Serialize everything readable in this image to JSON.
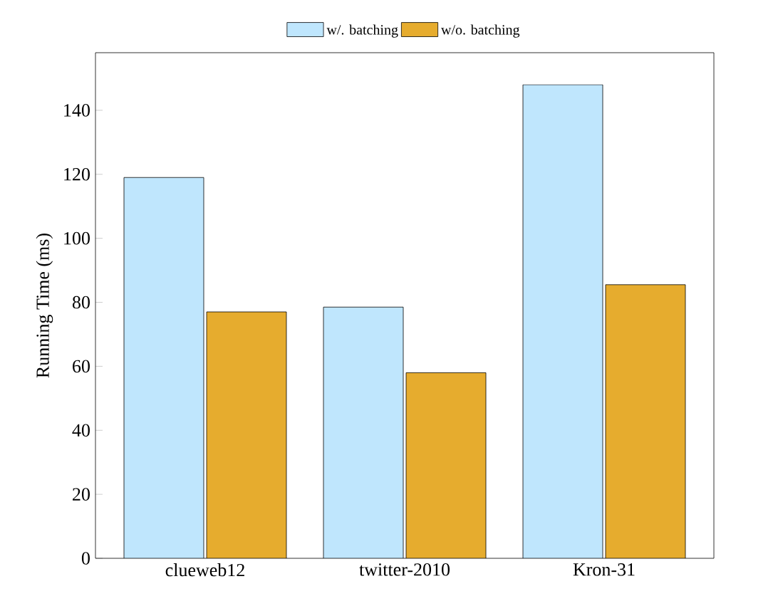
{
  "chart_data": {
    "type": "bar",
    "ylabel": "Running Time (ms)",
    "categories": [
      "clueweb12",
      "twitter-2010",
      "Kron-31"
    ],
    "series": [
      {
        "name": "w/. batching",
        "color": "#bfe6fd",
        "values": [
          119,
          78.5,
          148
        ]
      },
      {
        "name": "w/o. batching",
        "color": "#e6ac2e",
        "values": [
          77,
          58,
          85.5
        ]
      }
    ],
    "ylim": [
      0,
      158
    ],
    "yticks": [
      0,
      20,
      40,
      60,
      80,
      100,
      120,
      140
    ],
    "grid": false,
    "legend": "top"
  }
}
